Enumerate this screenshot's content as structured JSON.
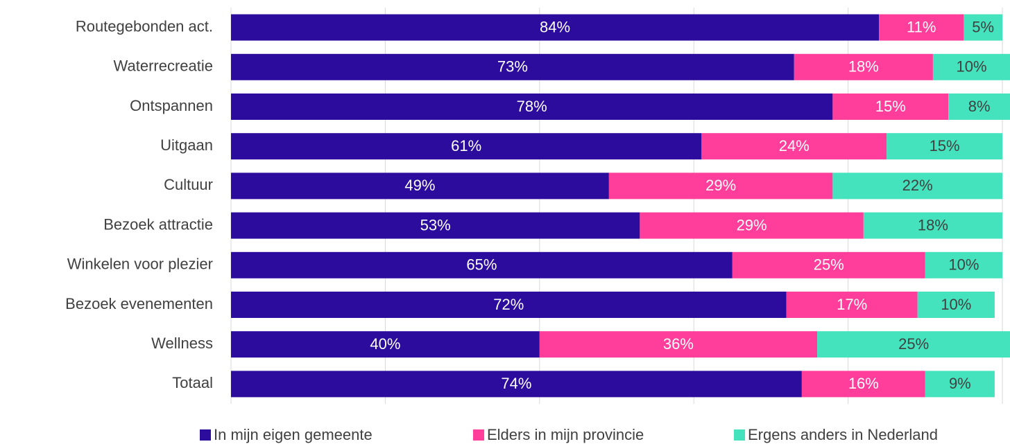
{
  "chart_data": {
    "type": "stacked-bar-horizontal",
    "categories": [
      "Routegebonden act.",
      "Waterrecreatie",
      "Ontspannen",
      "Uitgaan",
      "Cultuur",
      "Bezoek attractie",
      "Winkelen voor plezier",
      "Bezoek evenementen",
      "Wellness",
      "Totaal"
    ],
    "series": [
      {
        "name": "In mijn eigen gemeente",
        "color": "#2b0c9c",
        "values": [
          84,
          73,
          78,
          61,
          49,
          53,
          65,
          72,
          40,
          74
        ],
        "value_labels": [
          "84%",
          "73%",
          "78%",
          "61%",
          "49%",
          "53%",
          "65%",
          "72%",
          "40%",
          "74%"
        ]
      },
      {
        "name": "Elders in mijn provincie",
        "color": "#ff3d9b",
        "values": [
          11,
          18,
          15,
          24,
          29,
          29,
          25,
          17,
          36,
          16
        ],
        "value_labels": [
          "11%",
          "18%",
          "15%",
          "24%",
          "29%",
          "29%",
          "25%",
          "17%",
          "36%",
          "16%"
        ]
      },
      {
        "name": "Ergens anders in Nederland",
        "color": "#44e3bd",
        "values": [
          5,
          10,
          8,
          15,
          22,
          18,
          10,
          10,
          25,
          9
        ],
        "value_labels": [
          "5%",
          "10%",
          "8%",
          "15%",
          "22%",
          "18%",
          "10%",
          "10%",
          "25%",
          "9%"
        ]
      }
    ],
    "xlim": [
      0,
      100
    ],
    "xticks": [
      0,
      20,
      40,
      60,
      80,
      100
    ],
    "grid": true,
    "legend": "bottom"
  }
}
